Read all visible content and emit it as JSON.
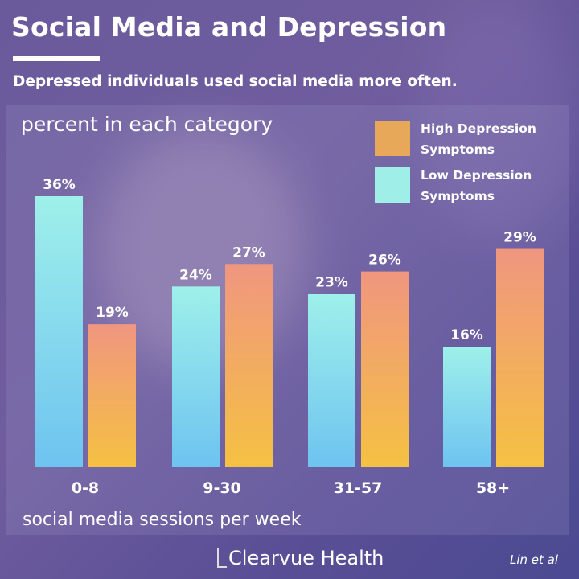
{
  "title": "Social Media and Depression",
  "subtitle": "Depressed individuals used social media more often.",
  "brand": "Clearvue Health",
  "citation": "Lin et al",
  "chart_data": {
    "type": "bar",
    "ylabel": "percent in each category",
    "xlabel": "social media sessions per week",
    "categories": [
      "0-8",
      "9-30",
      "31-57",
      "58+"
    ],
    "series": [
      {
        "name": "Low Depression Symptoms",
        "values": [
          36,
          24,
          23,
          16
        ],
        "labels": [
          "36%",
          "24%",
          "23%",
          "16%"
        ],
        "color_top": "#9ef0ea",
        "color_bottom": "#6ec3f0"
      },
      {
        "name": "High Depression Symptoms",
        "values": [
          19,
          27,
          26,
          29
        ],
        "labels": [
          "19%",
          "27%",
          "26%",
          "29%"
        ],
        "color_top": "#f09680",
        "color_bottom": "#f5c142"
      }
    ],
    "legend": {
      "placement": "top-right",
      "items": [
        {
          "line1": "High Depression",
          "line2": "Symptoms",
          "color": "#e8a85a"
        },
        {
          "line1": "Low Depression",
          "line2": "Symptoms",
          "color": "#9feee8"
        }
      ]
    },
    "ylim": [
      0,
      40
    ],
    "grid": false
  }
}
